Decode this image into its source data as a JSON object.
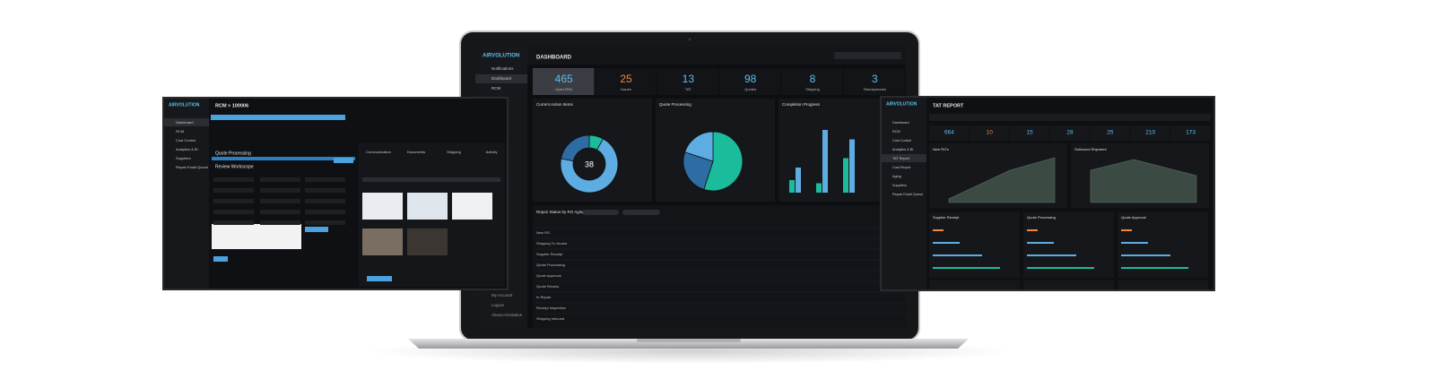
{
  "laptop": {
    "logo": "AIRVOLUTION",
    "header": "DASHBOARD",
    "sidebar": [
      "Notifications",
      "Dashboard",
      "RCM"
    ],
    "sidebar_footer": [
      "My Account",
      "Logout",
      "About AirVolution"
    ],
    "stats": [
      {
        "value": 465,
        "label": "Open ROs",
        "color": "#5bc0eb"
      },
      {
        "value": 25,
        "label": "Issues",
        "color": "#f0883e"
      },
      {
        "value": 13,
        "label": "TAT",
        "color": "#5bc0eb"
      },
      {
        "value": 98,
        "label": "Quotes",
        "color": "#5bc0eb"
      },
      {
        "value": 8,
        "label": "Shipping",
        "color": "#5bc0eb"
      },
      {
        "value": 3,
        "label": "Discrepancies",
        "color": "#5bc0eb"
      }
    ],
    "donut": {
      "title": "Current Action Items",
      "center": 38,
      "values": [
        8,
        70,
        22
      ],
      "colors": [
        "#1abc9c",
        "#5dade2",
        "#2e6da4"
      ]
    },
    "pie": {
      "title": "Quote Processing",
      "values": [
        55,
        25,
        20
      ],
      "colors": [
        "#1abc9c",
        "#2e6da4",
        "#5dade2"
      ]
    },
    "bars": {
      "title": "Completion Progress",
      "values": [
        4,
        8,
        3,
        20,
        11,
        17
      ],
      "colors": [
        "#1abc9c",
        "#5dade2"
      ]
    },
    "table": {
      "title": "Repair Status by RO Aging",
      "rows": [
        "New RO",
        "Shipping To Vendor",
        "Supplier Receipt",
        "Quote Processing",
        "Quote Approval",
        "Quote Review",
        "In Repair",
        "Receipt Inspection",
        "Shipping Inbound"
      ]
    }
  },
  "left_screen": {
    "logo": "AIRVOLUTION",
    "header": "RCM > 100006",
    "sidebar": [
      "Dashboard",
      "RCM",
      "Cost Control",
      "Analytics & BI",
      "Suppliers",
      "Repair Email Queue"
    ],
    "section": "Quote Processing",
    "subsection": "Review Workscope",
    "tabs": [
      "Communication",
      "Documents",
      "Shipping",
      "Activity"
    ]
  },
  "right_screen": {
    "logo": "AIRVOLUTION",
    "header": "TAT REPORT",
    "sidebar": [
      "Dashboard",
      "RCM",
      "Cost Control",
      "Analytics & BI",
      "TAT Report",
      "Cost Report",
      "Aging",
      "Suppliers",
      "Repair Email Queue"
    ],
    "stats": [
      {
        "value": 664,
        "color": "#5bc0eb"
      },
      {
        "value": 10,
        "color": "#f0883e"
      },
      {
        "value": 15,
        "color": "#5bc0eb"
      },
      {
        "value": 28,
        "color": "#5bc0eb"
      },
      {
        "value": 25,
        "color": "#5bc0eb"
      },
      {
        "value": 210,
        "color": "#5bc0eb"
      },
      {
        "value": 173,
        "color": "#5bc0eb"
      }
    ],
    "area_panels": [
      "New RO's",
      "Outbound Shipment"
    ],
    "panels": [
      "Supplier Receipt",
      "Quote Processing",
      "Quote Approval"
    ]
  }
}
